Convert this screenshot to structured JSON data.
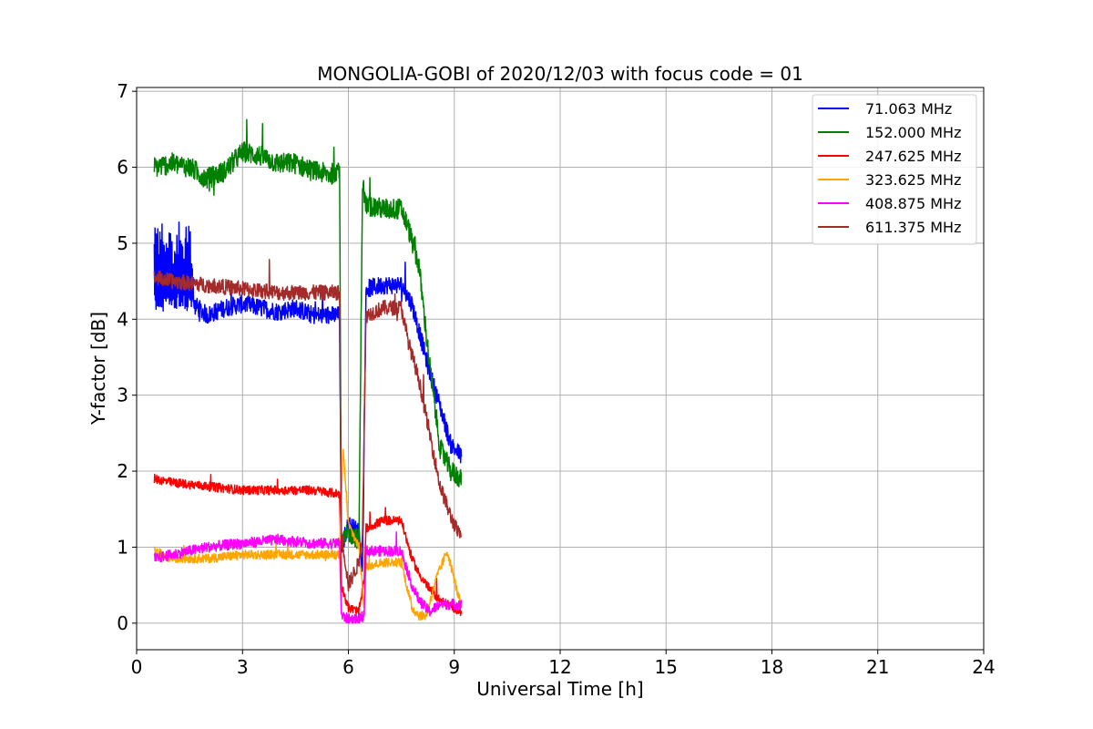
{
  "chart_data": {
    "type": "line",
    "title": "MONGOLIA-GOBI of 2020/12/03 with focus code = 01",
    "xlabel": "Universal Time [h]",
    "ylabel": "Y-factor [dB]",
    "xlim": [
      0,
      24
    ],
    "ylim": [
      -0.35,
      7.05
    ],
    "xticks": [
      "0",
      "3",
      "6",
      "9",
      "12",
      "15",
      "18",
      "21",
      "24"
    ],
    "yticks": [
      "0",
      "1",
      "2",
      "3",
      "4",
      "5",
      "6",
      "7"
    ],
    "grid": true,
    "legend_position": "top-right",
    "series": [
      {
        "name": "  71.063 MHz",
        "color": "#0000ff",
        "x": [
          0.5,
          1.0,
          1.6,
          2.0,
          2.5,
          3.0,
          3.5,
          4.0,
          4.5,
          5.0,
          5.5,
          5.75,
          5.8,
          6.0,
          6.3,
          6.4,
          6.5,
          7.0,
          7.5,
          7.8,
          8.0,
          8.3,
          8.6,
          8.9,
          9.2
        ],
        "values": [
          4.2,
          4.25,
          4.2,
          4.05,
          4.15,
          4.2,
          4.15,
          4.1,
          4.15,
          4.05,
          4.05,
          4.05,
          1.0,
          1.3,
          1.2,
          0.7,
          4.4,
          4.45,
          4.45,
          4.2,
          3.85,
          3.3,
          2.85,
          2.35,
          2.2
        ],
        "noise": 0.12,
        "burst": {
          "x": [
            0.5,
            1.6
          ],
          "values": [
            4.45,
            5.3
          ]
        }
      },
      {
        "name": "152.000 MHz",
        "color": "#008000",
        "x": [
          0.5,
          1.0,
          1.5,
          2.0,
          2.5,
          3.0,
          3.5,
          4.0,
          4.5,
          5.0,
          5.5,
          5.75,
          5.8,
          6.0,
          6.3,
          6.4,
          6.5,
          7.0,
          7.5,
          7.7,
          8.0,
          8.3,
          8.6,
          8.9,
          9.2
        ],
        "values": [
          6.0,
          6.05,
          6.0,
          5.85,
          5.95,
          6.2,
          6.15,
          6.05,
          6.05,
          5.95,
          5.9,
          6.0,
          1.0,
          1.2,
          1.1,
          5.8,
          5.5,
          5.45,
          5.45,
          5.2,
          4.7,
          3.4,
          2.3,
          2.0,
          1.9
        ],
        "noise": 0.14
      },
      {
        "name": "247.625 MHz",
        "color": "#ff0000",
        "x": [
          0.5,
          1.0,
          2.0,
          3.0,
          4.0,
          5.0,
          5.75,
          5.8,
          6.0,
          6.3,
          6.45,
          6.5,
          7.0,
          7.5,
          7.8,
          8.0,
          8.3,
          8.6,
          9.2
        ],
        "values": [
          1.9,
          1.85,
          1.8,
          1.75,
          1.75,
          1.75,
          1.7,
          0.5,
          0.2,
          0.15,
          0.6,
          1.25,
          1.35,
          1.35,
          0.85,
          0.65,
          0.45,
          0.3,
          0.15
        ],
        "noise": 0.06
      },
      {
        "name": "323.625 MHz",
        "color": "#ffa500",
        "x": [
          0.5,
          1.0,
          2.0,
          3.0,
          4.0,
          5.0,
          5.75,
          5.85,
          6.0,
          6.3,
          6.45,
          6.5,
          7.0,
          7.5,
          7.8,
          8.0,
          8.2,
          8.5,
          8.8,
          9.2
        ],
        "values": [
          0.95,
          0.85,
          0.85,
          0.9,
          0.9,
          0.9,
          0.9,
          2.3,
          1.3,
          1.0,
          0.2,
          0.75,
          0.8,
          0.8,
          0.2,
          0.1,
          0.1,
          0.6,
          0.95,
          0.2
        ],
        "noise": 0.06
      },
      {
        "name": "408.875 MHz",
        "color": "#ff00ff",
        "x": [
          0.5,
          1.0,
          2.0,
          3.0,
          4.0,
          5.0,
          5.75,
          5.8,
          6.0,
          6.3,
          6.45,
          6.5,
          7.0,
          7.5,
          7.8,
          8.0,
          8.3,
          8.6,
          9.2
        ],
        "values": [
          0.85,
          0.9,
          1.0,
          1.05,
          1.1,
          1.05,
          1.05,
          0.1,
          0.05,
          0.05,
          0.1,
          0.95,
          0.95,
          0.95,
          0.5,
          0.3,
          0.15,
          0.25,
          0.25
        ],
        "noise": 0.07
      },
      {
        "name": "611.375 MHz",
        "color": "#a52a2a",
        "x": [
          0.5,
          1.0,
          2.0,
          3.0,
          4.0,
          5.0,
          5.75,
          5.8,
          6.0,
          6.3,
          6.4,
          6.5,
          7.0,
          7.5,
          7.7,
          8.0,
          8.3,
          8.6,
          8.9,
          9.2
        ],
        "values": [
          4.55,
          4.5,
          4.45,
          4.4,
          4.35,
          4.35,
          4.35,
          1.2,
          0.5,
          0.8,
          1.2,
          4.05,
          4.15,
          4.15,
          3.7,
          3.2,
          2.5,
          1.8,
          1.4,
          1.1
        ],
        "noise": 0.1
      }
    ]
  }
}
